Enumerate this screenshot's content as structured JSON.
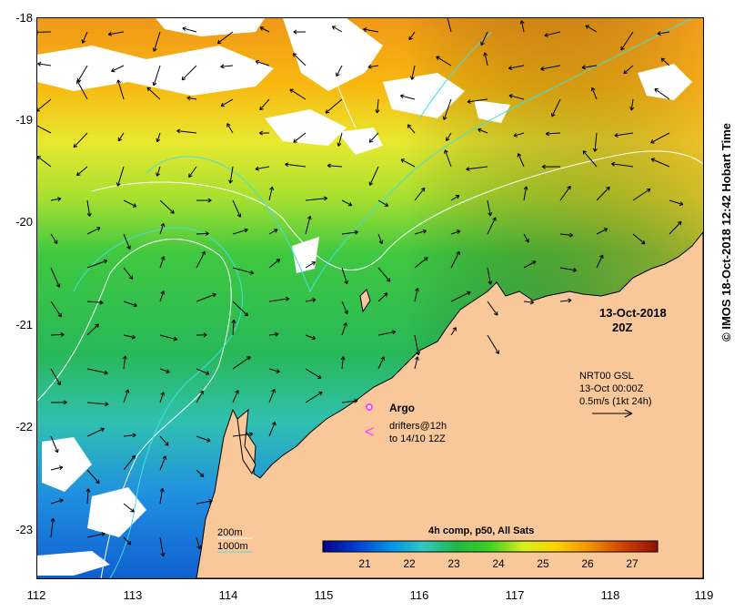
{
  "map": {
    "lat_labels": [
      "-18",
      "-19",
      "-20",
      "-21",
      "-22",
      "-23"
    ],
    "lon_labels": [
      "112",
      "113",
      "114",
      "115",
      "116",
      "117",
      "118",
      "119"
    ],
    "date": "13-Oct-2018",
    "time": "20Z",
    "vector_info": {
      "line1": "NRT00 GSL",
      "line2": "13-Oct 00:00Z",
      "line3": "0.5m/s (1kt 24h)"
    },
    "argo_label": "Argo",
    "drifters_line1": "drifters@12h",
    "drifters_line2": "to 14/10 12Z",
    "contour_legend": {
      "c200": "200m",
      "c1000": "1000m"
    },
    "colorbar": {
      "title": "4h comp, p50, All Sats",
      "ticks": [
        "21",
        "22",
        "23",
        "24",
        "25",
        "26",
        "27"
      ],
      "colors": [
        "#00008b",
        "#0040d0",
        "#0090e8",
        "#30c8c0",
        "#20b848",
        "#40d020",
        "#d8f020",
        "#ffd000",
        "#f09000",
        "#d04000",
        "#901000"
      ]
    },
    "copyright": "© IMOS 18-Oct-2018 12:42 Hobart Time",
    "colors": {
      "land": "#f9c89a",
      "contour_200": "#ffffff",
      "contour_1000": "#40e0e0",
      "argo": "#ff40ff"
    }
  }
}
